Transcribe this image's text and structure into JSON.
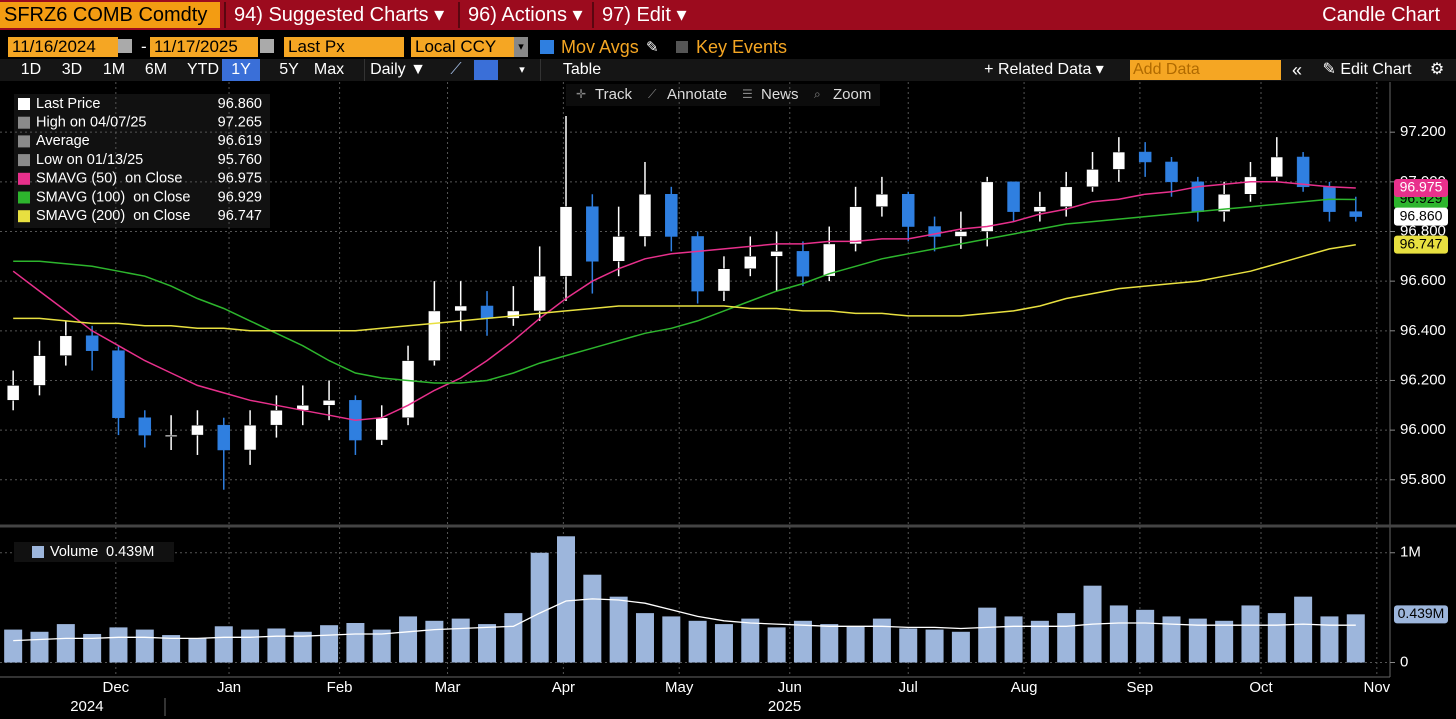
{
  "ui": {
    "security": "SFRZ6 COMB Comdty",
    "menus": [
      "94) Suggested Charts",
      "96) Actions",
      "97) Edit"
    ],
    "chart_kind": "Candle Chart",
    "start_date": "11/16/2024",
    "date_separator": "-",
    "end_date": "11/17/2025",
    "field": "Last Px",
    "currency": "Local CCY",
    "mov_avgs": "Mov Avgs",
    "key_events": "Key Events",
    "periods": [
      "1D",
      "3D",
      "1M",
      "6M",
      "YTD",
      "1Y",
      "5Y",
      "Max"
    ],
    "active_period": 5,
    "frequency": "Daily",
    "table": "Table",
    "related_data": "Related Data",
    "add_data": "Add Data",
    "edit_chart": "Edit Chart",
    "tools": [
      "Track",
      "Annotate",
      "News",
      "Zoom"
    ]
  },
  "chart_data": [
    {
      "type": "candlestick",
      "color_up": "#ffffff",
      "color_down": "#2f7fe0",
      "values": [
        [
          96.12,
          96.24,
          96.08,
          96.18
        ],
        [
          96.18,
          96.36,
          96.14,
          96.3
        ],
        [
          96.3,
          96.44,
          96.26,
          96.38
        ],
        [
          96.38,
          96.42,
          96.24,
          96.32
        ],
        [
          96.32,
          96.34,
          95.98,
          96.05
        ],
        [
          96.05,
          96.08,
          95.93,
          95.98
        ],
        [
          95.98,
          96.06,
          95.92,
          95.98
        ],
        [
          95.98,
          96.08,
          95.9,
          96.02
        ],
        [
          96.02,
          96.05,
          95.76,
          95.92
        ],
        [
          95.92,
          96.08,
          95.86,
          96.02
        ],
        [
          96.02,
          96.14,
          95.97,
          96.08
        ],
        [
          96.08,
          96.18,
          96.02,
          96.1
        ],
        [
          96.1,
          96.2,
          96.04,
          96.12
        ],
        [
          96.12,
          96.14,
          95.9,
          95.96
        ],
        [
          95.96,
          96.1,
          95.94,
          96.05
        ],
        [
          96.05,
          96.34,
          96.02,
          96.28
        ],
        [
          96.28,
          96.6,
          96.26,
          96.48
        ],
        [
          96.48,
          96.6,
          96.4,
          96.5
        ],
        [
          96.5,
          96.56,
          96.38,
          96.45
        ],
        [
          96.45,
          96.58,
          96.42,
          96.48
        ],
        [
          96.48,
          96.74,
          96.44,
          96.62
        ],
        [
          96.62,
          97.265,
          96.52,
          96.9
        ],
        [
          96.9,
          96.95,
          96.55,
          96.68
        ],
        [
          96.68,
          96.9,
          96.62,
          96.78
        ],
        [
          96.78,
          97.08,
          96.74,
          96.95
        ],
        [
          96.95,
          96.98,
          96.72,
          96.78
        ],
        [
          96.78,
          96.8,
          96.51,
          96.56
        ],
        [
          96.56,
          96.7,
          96.52,
          96.65
        ],
        [
          96.65,
          96.78,
          96.62,
          96.7
        ],
        [
          96.7,
          96.8,
          96.56,
          96.72
        ],
        [
          96.72,
          96.76,
          96.58,
          96.62
        ],
        [
          96.62,
          96.82,
          96.6,
          96.75
        ],
        [
          96.75,
          96.98,
          96.72,
          96.9
        ],
        [
          96.9,
          97.02,
          96.86,
          96.95
        ],
        [
          96.95,
          96.96,
          96.76,
          96.82
        ],
        [
          96.82,
          96.86,
          96.72,
          96.78
        ],
        [
          96.78,
          96.88,
          96.73,
          96.8
        ],
        [
          96.8,
          97.02,
          96.74,
          97.0
        ],
        [
          97.0,
          97.0,
          96.84,
          96.88
        ],
        [
          96.88,
          96.96,
          96.84,
          96.9
        ],
        [
          96.9,
          97.04,
          96.86,
          96.98
        ],
        [
          96.98,
          97.12,
          96.96,
          97.05
        ],
        [
          97.05,
          97.18,
          97.0,
          97.12
        ],
        [
          97.12,
          97.16,
          97.02,
          97.08
        ],
        [
          97.08,
          97.1,
          96.94,
          97.0
        ],
        [
          97.0,
          97.02,
          96.84,
          96.88
        ],
        [
          96.88,
          97.0,
          96.84,
          96.95
        ],
        [
          96.95,
          97.08,
          96.92,
          97.02
        ],
        [
          97.02,
          97.18,
          97.0,
          97.1
        ],
        [
          97.1,
          97.12,
          96.96,
          96.98
        ],
        [
          96.98,
          97.0,
          96.84,
          96.88
        ],
        [
          96.88,
          96.94,
          96.84,
          96.86
        ]
      ],
      "lines": [
        {
          "color": "#e8308c",
          "values": [
            96.64,
            96.56,
            96.48,
            96.4,
            96.34,
            96.28,
            96.23,
            96.18,
            96.15,
            96.12,
            96.1,
            96.08,
            96.06,
            96.04,
            96.05,
            96.1,
            96.16,
            96.21,
            96.28,
            96.36,
            96.45,
            96.53,
            96.6,
            96.65,
            96.69,
            96.71,
            96.72,
            96.73,
            96.74,
            96.75,
            96.75,
            96.76,
            96.76,
            96.77,
            96.77,
            96.79,
            96.81,
            96.82,
            96.84,
            96.87,
            96.89,
            96.92,
            96.93,
            96.95,
            96.96,
            96.98,
            96.99,
            97.0,
            97.0,
            96.99,
            96.98,
            96.975
          ]
        },
        {
          "color": "#2db52d",
          "values": [
            96.68,
            96.68,
            96.67,
            96.66,
            96.64,
            96.62,
            96.58,
            96.53,
            96.49,
            96.44,
            96.39,
            96.34,
            96.28,
            96.23,
            96.21,
            96.2,
            96.19,
            96.19,
            96.2,
            96.23,
            96.27,
            96.3,
            96.33,
            96.36,
            96.39,
            96.41,
            96.44,
            96.48,
            96.52,
            96.56,
            96.59,
            96.63,
            96.66,
            96.69,
            96.71,
            96.73,
            96.75,
            96.77,
            96.79,
            96.81,
            96.83,
            96.84,
            96.85,
            96.86,
            96.87,
            96.88,
            96.89,
            96.9,
            96.91,
            96.92,
            96.93,
            96.929
          ]
        },
        {
          "color": "#e8e040",
          "values": [
            96.45,
            96.45,
            96.44,
            96.43,
            96.43,
            96.42,
            96.42,
            96.41,
            96.41,
            96.4,
            96.4,
            96.4,
            96.4,
            96.4,
            96.41,
            96.42,
            96.43,
            96.44,
            96.45,
            96.46,
            96.47,
            96.48,
            96.49,
            96.5,
            96.5,
            96.5,
            96.5,
            96.5,
            96.49,
            96.49,
            96.48,
            96.48,
            96.47,
            96.47,
            96.46,
            96.46,
            96.46,
            96.47,
            96.48,
            96.5,
            96.53,
            96.55,
            96.57,
            96.58,
            96.59,
            96.6,
            96.62,
            96.64,
            96.67,
            96.7,
            96.73,
            96.747
          ]
        }
      ],
      "legend": [
        {
          "label": "Last Price",
          "value": 96.86,
          "value_label": "96.860",
          "color": "#ffffff"
        },
        {
          "label": "High on 04/07/25",
          "value": 97.265,
          "value_label": "97.265",
          "color": "#8a8a8a"
        },
        {
          "label": "Average",
          "value": 96.619,
          "value_label": "96.619",
          "color": "#8a8a8a"
        },
        {
          "label": "Low on 01/13/25",
          "value": 95.76,
          "value_label": "95.760",
          "color": "#8a8a8a"
        },
        {
          "label": "SMAVG (50)  on Close",
          "value": 96.975,
          "value_label": "96.975",
          "color": "#e8308c"
        },
        {
          "label": "SMAVG (100)  on Close",
          "value": 96.929,
          "value_label": "96.929",
          "color": "#2db52d"
        },
        {
          "label": "SMAVG (200)  on Close",
          "value": 96.747,
          "value_label": "96.747",
          "color": "#e8e040"
        }
      ],
      "xlim": [
        -0.5,
        52.3
      ],
      "xticks": [
        {
          "value": 3.9,
          "label": "Dec"
        },
        {
          "value": 8.2,
          "label": "Jan"
        },
        {
          "value": 12.4,
          "label": "Feb"
        },
        {
          "value": 16.5,
          "label": "Mar"
        },
        {
          "value": 20.9,
          "label": "Apr"
        },
        {
          "value": 25.3,
          "label": "May"
        },
        {
          "value": 29.5,
          "label": "Jun"
        },
        {
          "value": 34.0,
          "label": "Jul"
        },
        {
          "value": 38.4,
          "label": "Aug"
        },
        {
          "value": 42.8,
          "label": "Sep"
        },
        {
          "value": 47.4,
          "label": "Oct"
        },
        {
          "value": 51.8,
          "label": "Nov"
        }
      ],
      "years": [
        {
          "value": 2.8,
          "label": "2024"
        },
        {
          "value": 29.3,
          "label": "2025"
        }
      ],
      "ylim": [
        95.63,
        97.39
      ],
      "yticks": [
        {
          "value": 95.8,
          "label": "95.800"
        },
        {
          "value": 96.0,
          "label": "96.000"
        },
        {
          "value": 96.2,
          "label": "96.200"
        },
        {
          "value": 96.4,
          "label": "96.400"
        },
        {
          "value": 96.6,
          "label": "96.600"
        },
        {
          "value": 96.8,
          "label": "96.800"
        },
        {
          "value": 97.0,
          "label": "97.000"
        },
        {
          "value": 97.2,
          "label": "97.200"
        }
      ],
      "grid": true
    },
    {
      "type": "bar",
      "legend": {
        "label": "Volume",
        "value": 439000,
        "value_label": "0.439M"
      },
      "color": "#9db6dc",
      "values": [
        300000,
        280000,
        350000,
        260000,
        320000,
        300000,
        250000,
        220000,
        330000,
        300000,
        310000,
        280000,
        340000,
        360000,
        300000,
        420000,
        380000,
        400000,
        350000,
        450000,
        1000000,
        1150000,
        800000,
        600000,
        450000,
        420000,
        380000,
        350000,
        400000,
        320000,
        380000,
        350000,
        330000,
        400000,
        310000,
        300000,
        280000,
        500000,
        420000,
        380000,
        450000,
        700000,
        520000,
        480000,
        420000,
        400000,
        380000,
        520000,
        450000,
        600000,
        420000,
        439000
      ],
      "line": {
        "color": "#ffffff",
        "values": [
          200000,
          210000,
          220000,
          220000,
          230000,
          230000,
          220000,
          220000,
          230000,
          230000,
          240000,
          240000,
          250000,
          260000,
          260000,
          280000,
          300000,
          310000,
          320000,
          330000,
          450000,
          560000,
          580000,
          570000,
          540000,
          480000,
          420000,
          380000,
          360000,
          350000,
          340000,
          330000,
          330000,
          330000,
          320000,
          320000,
          310000,
          320000,
          330000,
          330000,
          330000,
          350000,
          360000,
          360000,
          350000,
          340000,
          340000,
          340000,
          340000,
          350000,
          340000,
          340000
        ]
      },
      "ylim": [
        -50000,
        1180000
      ],
      "yticks": [
        0,
        {
          "value": 1000000,
          "label": "1M"
        }
      ],
      "grid": true
    }
  ]
}
